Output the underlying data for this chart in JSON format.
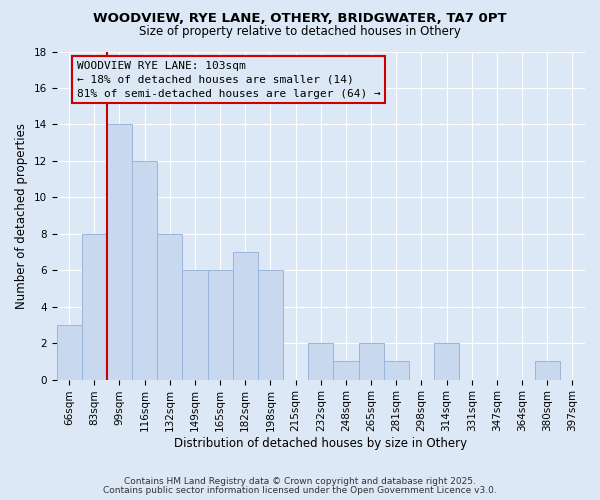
{
  "title": "WOODVIEW, RYE LANE, OTHERY, BRIDGWATER, TA7 0PT",
  "subtitle": "Size of property relative to detached houses in Othery",
  "xlabel": "Distribution of detached houses by size in Othery",
  "ylabel": "Number of detached properties",
  "bar_labels": [
    "66sqm",
    "83sqm",
    "99sqm",
    "116sqm",
    "132sqm",
    "149sqm",
    "165sqm",
    "182sqm",
    "198sqm",
    "215sqm",
    "232sqm",
    "248sqm",
    "265sqm",
    "281sqm",
    "298sqm",
    "314sqm",
    "331sqm",
    "347sqm",
    "364sqm",
    "380sqm",
    "397sqm"
  ],
  "bar_values": [
    3,
    8,
    14,
    12,
    8,
    6,
    6,
    7,
    6,
    0,
    2,
    1,
    2,
    1,
    0,
    2,
    0,
    0,
    0,
    1,
    0
  ],
  "bar_color": "#c8d9ef",
  "bar_edge_color": "#9ab5d8",
  "vline_color": "#cc0000",
  "vline_pos": 1.5,
  "ylim": [
    0,
    18
  ],
  "yticks": [
    0,
    2,
    4,
    6,
    8,
    10,
    12,
    14,
    16,
    18
  ],
  "annotation_title": "WOODVIEW RYE LANE: 103sqm",
  "annotation_line1": "← 18% of detached houses are smaller (14)",
  "annotation_line2": "81% of semi-detached houses are larger (64) →",
  "annotation_box_color": "#cc0000",
  "bg_color": "#dce8f5",
  "plot_bg_color": "#dce8f5",
  "grid_color": "#ffffff",
  "footnote1": "Contains HM Land Registry data © Crown copyright and database right 2025.",
  "footnote2": "Contains public sector information licensed under the Open Government Licence v3.0.",
  "title_fontsize": 9.5,
  "subtitle_fontsize": 8.5,
  "axis_label_fontsize": 8.5,
  "tick_fontsize": 7.5,
  "annotation_fontsize": 8.0,
  "footnote_fontsize": 6.5
}
